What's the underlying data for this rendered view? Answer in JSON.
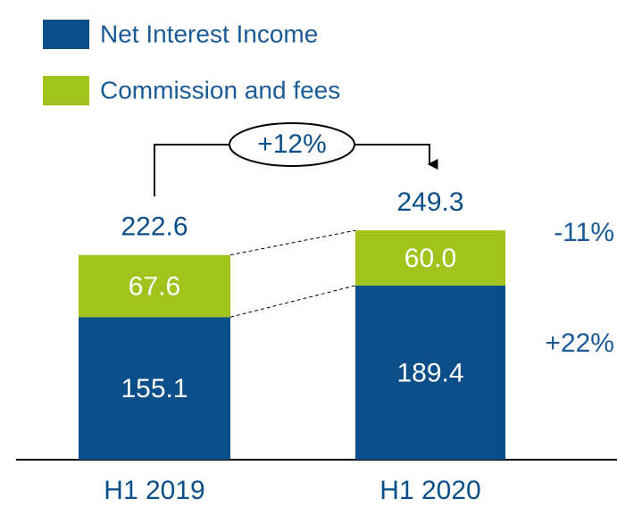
{
  "chart_data": {
    "type": "stacked-bar",
    "categories": [
      "H1 2019",
      "H1 2020"
    ],
    "series": [
      {
        "name": "Net Interest Income",
        "color": "#0b4f8a",
        "values": [
          155.1,
          189.4
        ]
      },
      {
        "name": "Commission and fees",
        "color": "#a2c21c",
        "values": [
          67.6,
          60.0
        ],
        "value_labels": [
          "67.6",
          "60.0"
        ]
      }
    ],
    "totals": [
      222.6,
      249.3
    ],
    "growth": "+12%",
    "series_changes": [
      "+22%",
      "-11%"
    ]
  }
}
